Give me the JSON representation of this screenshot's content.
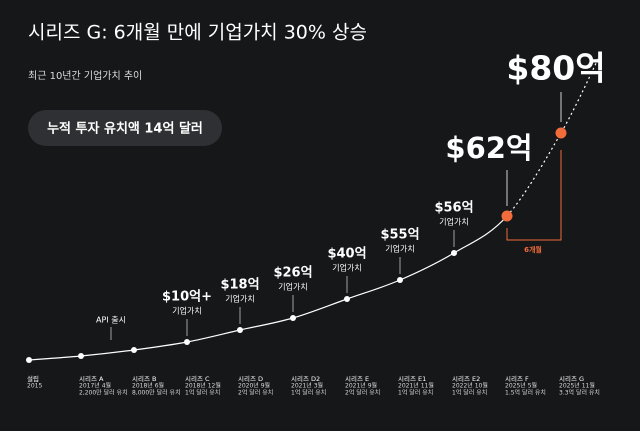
{
  "header": {
    "title": "시리즈 G: 6개월 만에 기업가치 30% 상승",
    "subtitle": "최근 10년간 기업가치 추이"
  },
  "badge": "누적 투자 유치액 14억 달러",
  "interval_label": "6개월",
  "milestones": [
    {
      "round": "설립",
      "date": "2015"
    },
    {
      "round": "시리즈 A",
      "date": "2017년 4월",
      "raised": "2,200만 달러 유치",
      "note": "API 출시"
    },
    {
      "round": "시리즈 B",
      "date": "2018년 6월",
      "raised": "8,000만 달러 유치"
    },
    {
      "round": "시리즈 C",
      "date": "2018년 12월",
      "raised": "1억 달러 유치",
      "valuation": "$10억+",
      "valuation_note": "기업가치"
    },
    {
      "round": "시리즈 D",
      "date": "2020년 9월",
      "raised": "2억 달러 유치",
      "valuation": "$18억",
      "valuation_note": "기업가치"
    },
    {
      "round": "시리즈 D2",
      "date": "2021년 3월",
      "raised": "1억 달러 유치",
      "valuation": "$26억",
      "valuation_note": "기업가치"
    },
    {
      "round": "시리즈 E",
      "date": "2021년 9월",
      "raised": "2억 달러 유치",
      "valuation": "$40억",
      "valuation_note": "기업가치"
    },
    {
      "round": "시리즈 E1",
      "date": "2021년 11월",
      "raised": "1억 달러 유치",
      "valuation": "$55억",
      "valuation_note": "기업가치"
    },
    {
      "round": "시리즈 E2",
      "date": "2022년 10월",
      "raised": "1억 달러 유치",
      "valuation": "$56억",
      "valuation_note": "기업가치"
    },
    {
      "round": "시리즈 F",
      "date": "2025년 5월",
      "raised": "1.5억 달러 유치",
      "valuation": "$62억"
    },
    {
      "round": "시리즈 G",
      "date": "2025년 11월",
      "raised": "3.3억 달러 유치",
      "valuation": "$80억"
    }
  ]
}
